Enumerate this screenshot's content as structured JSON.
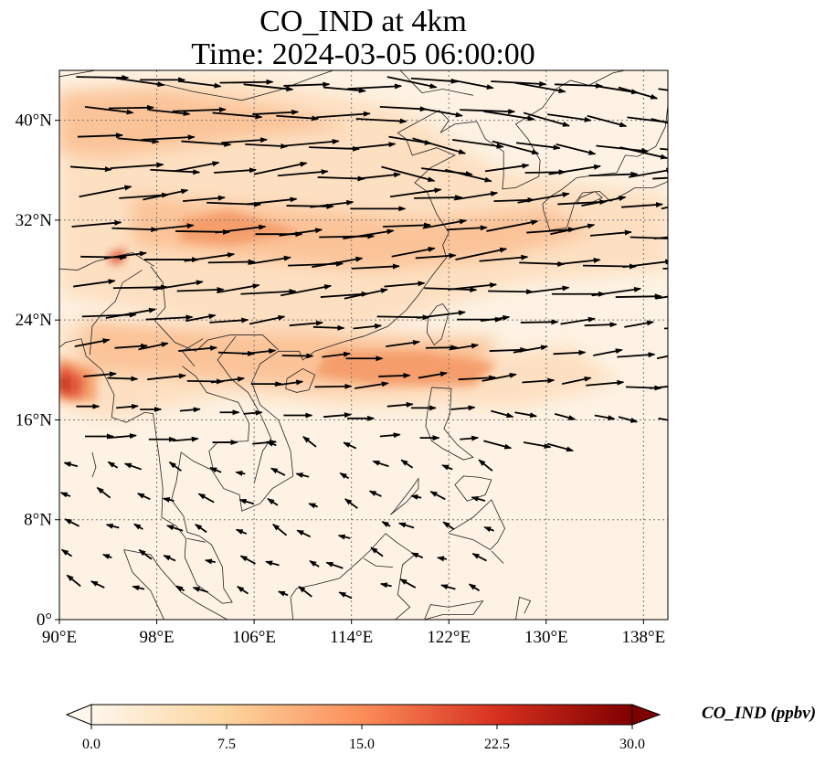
{
  "title": {
    "line1": "CO_IND at 4km",
    "line2": "Time: 2024-03-05 06:00:00"
  },
  "map": {
    "lon_range": [
      90,
      140
    ],
    "lat_range": [
      0,
      44
    ],
    "lon_ticks": [
      "90°E",
      "98°E",
      "106°E",
      "114°E",
      "122°E",
      "130°E",
      "138°E"
    ],
    "lat_ticks": [
      "0°",
      "8°N",
      "16°N",
      "24°N",
      "32°N",
      "40°N"
    ],
    "gridlines": true,
    "field_color": "#fdf2e3",
    "plume_colors": [
      "#fde0c2",
      "#fbc398",
      "#f59e6c",
      "#e0553a",
      "#b42a1c"
    ]
  },
  "colorbar": {
    "label": "CO_IND (ppbv)",
    "ticks": [
      "0.0",
      "7.5",
      "15.0",
      "22.5",
      "30.0"
    ],
    "range": [
      0,
      30
    ],
    "colormap": "OrRd",
    "extend": "both"
  }
}
